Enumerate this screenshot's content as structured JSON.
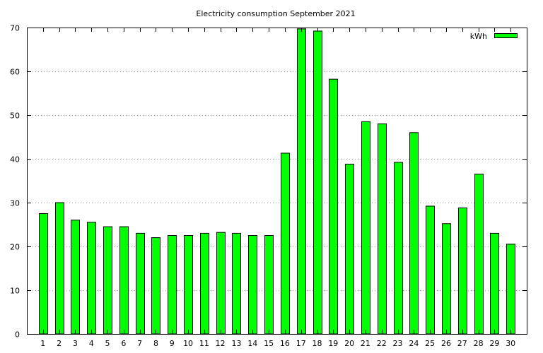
{
  "chart_data": {
    "type": "bar",
    "title": "Electricity consumption September 2021",
    "xlabel": "",
    "ylabel": "",
    "categories": [
      "1",
      "2",
      "3",
      "4",
      "5",
      "6",
      "7",
      "8",
      "9",
      "10",
      "11",
      "12",
      "13",
      "14",
      "15",
      "16",
      "17",
      "18",
      "19",
      "20",
      "21",
      "22",
      "23",
      "24",
      "25",
      "26",
      "27",
      "28",
      "29",
      "30"
    ],
    "series": [
      {
        "name": "kWh",
        "color": "#00ff00",
        "values": [
          27.5,
          30,
          26,
          25.5,
          24.5,
          24.5,
          23,
          22,
          22.5,
          22.5,
          23,
          23.2,
          23,
          22.5,
          22.5,
          41.3,
          69.7,
          69.2,
          58.2,
          38.8,
          48.5,
          48,
          39.2,
          46,
          29.2,
          25.2,
          28.8,
          36.5,
          23,
          20.5
        ]
      }
    ],
    "ylim": [
      0,
      70
    ],
    "yticks": [
      0,
      10,
      20,
      30,
      40,
      50,
      60,
      70
    ],
    "grid": true,
    "legend_position": "top-right"
  }
}
